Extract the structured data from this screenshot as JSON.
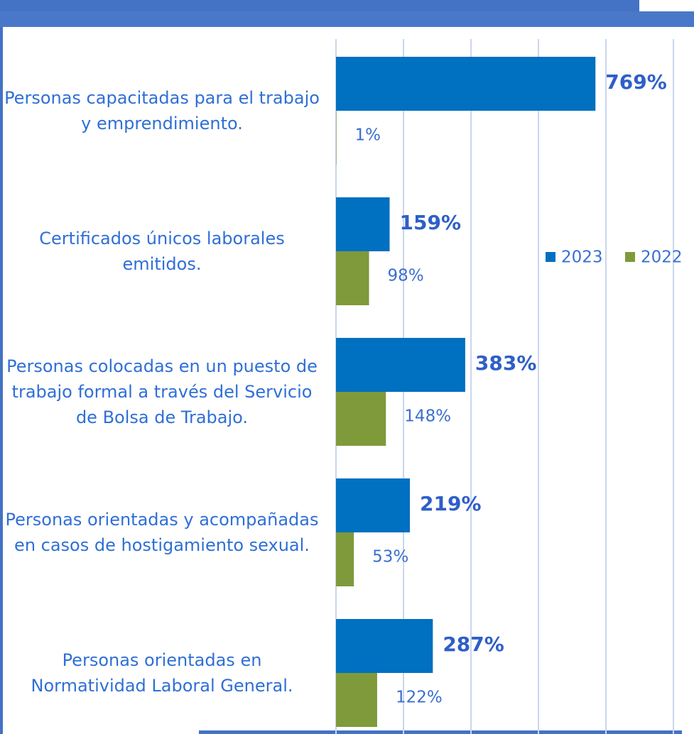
{
  "chart_data": {
    "type": "bar",
    "orientation": "horizontal",
    "categories": [
      "Personas capacitadas para el trabajo y emprendimiento.",
      "Certificados únicos laborales emitidos.",
      "Personas colocadas en un puesto de trabajo formal a través del Servicio de Bolsa de Trabajo.",
      "Personas orientadas y acompañadas en casos de hostigamiento sexual.",
      "Personas orientadas en Normatividad Laboral General."
    ],
    "series": [
      {
        "name": "2023",
        "color": "#0070c0",
        "values": [
          769,
          159,
          383,
          219,
          287
        ],
        "value_labels": [
          "769%",
          "159%",
          "383%",
          "219%",
          "287%"
        ]
      },
      {
        "name": "2022",
        "color": "#7f9a3a",
        "values": [
          1,
          98,
          148,
          53,
          122
        ],
        "value_labels": [
          "1%",
          "98%",
          "148%",
          "53%",
          "122%"
        ]
      }
    ],
    "xlim": [
      0,
      1000
    ],
    "xticks": [
      0,
      200,
      400,
      600,
      800,
      1000
    ],
    "grid": true,
    "legend": "right"
  }
}
